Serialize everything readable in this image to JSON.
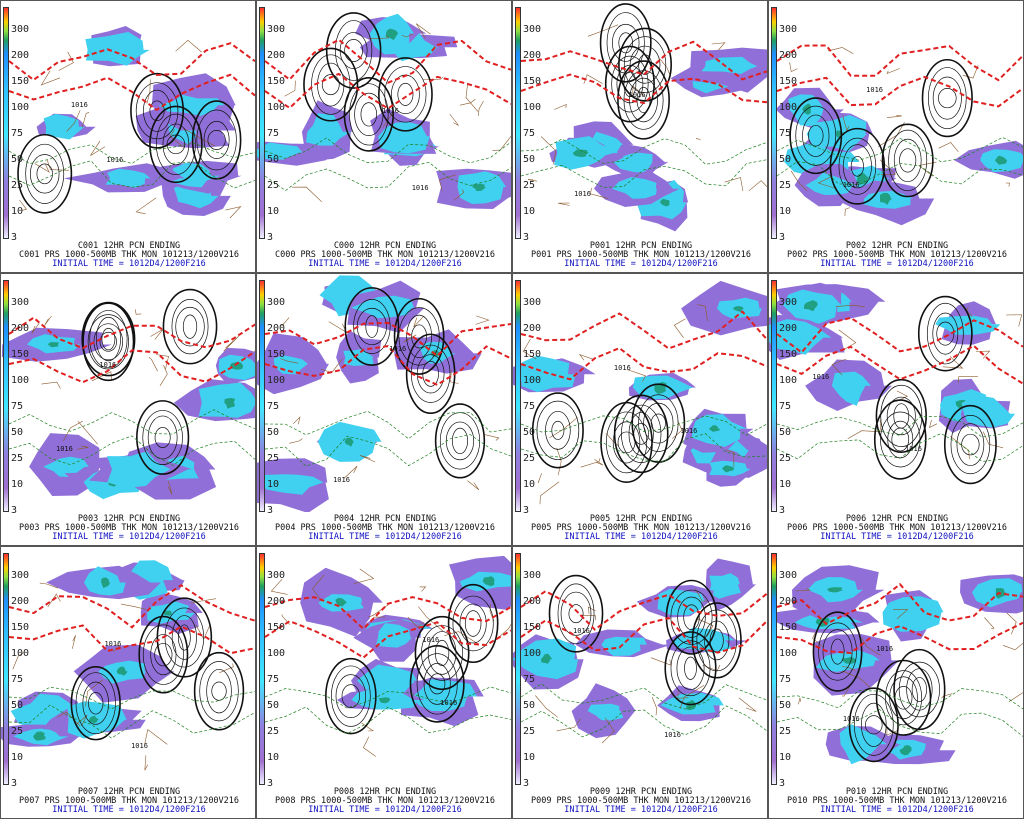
{
  "colorbar_labels": [
    "300",
    "200",
    "150",
    "100",
    "75",
    "50",
    "25",
    "10",
    "3"
  ],
  "colorbar_label_offsets": [
    0,
    26,
    52,
    78,
    104,
    130,
    156,
    182,
    208
  ],
  "initial_time": "INITIAL TIME = 1012D4/1200F216",
  "palette": {
    "precip_low": "#9070d8",
    "precip_mid": "#40d0f0",
    "precip_high": "#20a080",
    "thickness_contour": "#e02020",
    "pressure_contour": "#111111",
    "dewpoint_contour": "#208020",
    "borders": "#8b5a2b",
    "caption_blue": "#1010c0"
  },
  "panels": [
    {
      "member": "C001",
      "title": "C001 12HR PCN ENDING",
      "subtitle": "C001 PRS 1000-500MB THK MON 101213/1200V216",
      "lows": [
        "1016",
        "1016"
      ]
    },
    {
      "member": "C000",
      "title": "C000 12HR PCN ENDING",
      "subtitle": "C000 PRS 1000-500MB THK MON 101213/1200V216",
      "lows": [
        "1016",
        "1016"
      ]
    },
    {
      "member": "P001",
      "title": "P001 12HR PCN ENDING",
      "subtitle": "P001 PRS 1000-500MB THK MON 101213/1200V216",
      "lows": [
        "1016",
        "1016"
      ]
    },
    {
      "member": "P002",
      "title": "P002 12HR PCN ENDING",
      "subtitle": "P002 PRS 1000-500MB THK MON 101213/1200V216",
      "lows": [
        "1016",
        "1016"
      ]
    },
    {
      "member": "P003",
      "title": "P003 12HR PCN ENDING",
      "subtitle": "P003 PRS 1000-500MB THK MON 101213/1200V216",
      "lows": [
        "1016",
        "1016"
      ]
    },
    {
      "member": "P004",
      "title": "P004 12HR PCN ENDING",
      "subtitle": "P004 PRS 1000-500MB THK MON 101213/1200V216",
      "lows": [
        "1016",
        "1016"
      ]
    },
    {
      "member": "P005",
      "title": "P005 12HR PCN ENDING",
      "subtitle": "P005 PRS 1000-500MB THK MON 101213/1200V216",
      "lows": [
        "1016",
        "1016"
      ]
    },
    {
      "member": "P006",
      "title": "P006 12HR PCN ENDING",
      "subtitle": "P006 PRS 1000-500MB THK MON 101213/1200V216",
      "lows": [
        "1016",
        "1016"
      ]
    },
    {
      "member": "P007",
      "title": "P007 12HR PCN ENDING",
      "subtitle": "P007 PRS 1000-500MB THK MON 101213/1200V216",
      "lows": [
        "1016",
        "1016"
      ]
    },
    {
      "member": "P008",
      "title": "P008 12HR PCN ENDING",
      "subtitle": "P008 PRS 1000-500MB THK MON 101213/1200V216",
      "lows": [
        "1016",
        "1016"
      ]
    },
    {
      "member": "P009",
      "title": "P009 12HR PCN ENDING",
      "subtitle": "P009 PRS 1000-500MB THK MON 101213/1200V216",
      "lows": [
        "1016",
        "1016"
      ]
    },
    {
      "member": "P010",
      "title": "P010 12HR PCN ENDING",
      "subtitle": "P010 PRS 1000-500MB THK MON 101213/1200V216",
      "lows": [
        "1016",
        "1016"
      ]
    }
  ]
}
